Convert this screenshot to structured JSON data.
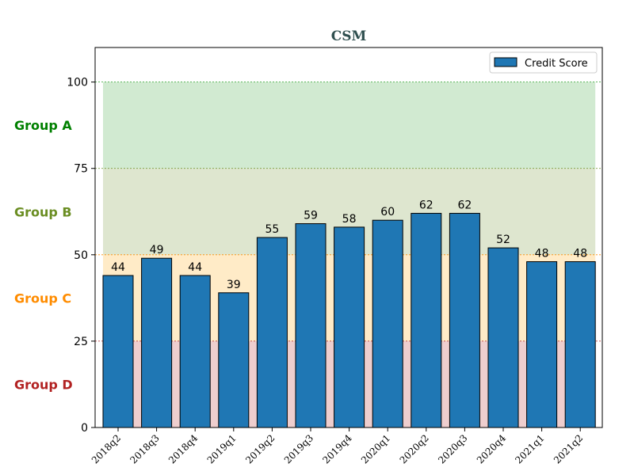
{
  "chart_data": {
    "type": "bar",
    "title": "CSM",
    "xlabel": "",
    "ylabel": "",
    "categories": [
      "2018q2",
      "2018q3",
      "2018q4",
      "2019q1",
      "2019q2",
      "2019q3",
      "2019q4",
      "2020q1",
      "2020q2",
      "2020q3",
      "2020q4",
      "2021q1",
      "2021q2"
    ],
    "series": [
      {
        "name": "Credit Score",
        "values": [
          44,
          49,
          44,
          39,
          55,
          59,
          58,
          60,
          62,
          62,
          52,
          48,
          48
        ],
        "color": "#1f77b4"
      }
    ],
    "ylim": [
      0,
      110
    ],
    "yticks": [
      "0",
      "25",
      "50",
      "75",
      "100"
    ],
    "legend_position": "top-right",
    "grid": false,
    "bands": [
      {
        "label": "Group A",
        "from": 75,
        "to": 100,
        "fill": "#2ca02c",
        "line": "#2ca02c",
        "label_color": "#008000"
      },
      {
        "label": "Group B",
        "from": 50,
        "to": 75,
        "fill": "#6b8e23",
        "line": "#6b8e23",
        "label_color": "#6b8e23"
      },
      {
        "label": "Group C",
        "from": 25,
        "to": 50,
        "fill": "#ffa500",
        "line": "#ff8c00",
        "label_color": "#ff8c00"
      },
      {
        "label": "Group D",
        "from": 0,
        "to": 25,
        "fill": "#b22222",
        "line": "#b22222",
        "label_color": "#b22222"
      }
    ]
  }
}
